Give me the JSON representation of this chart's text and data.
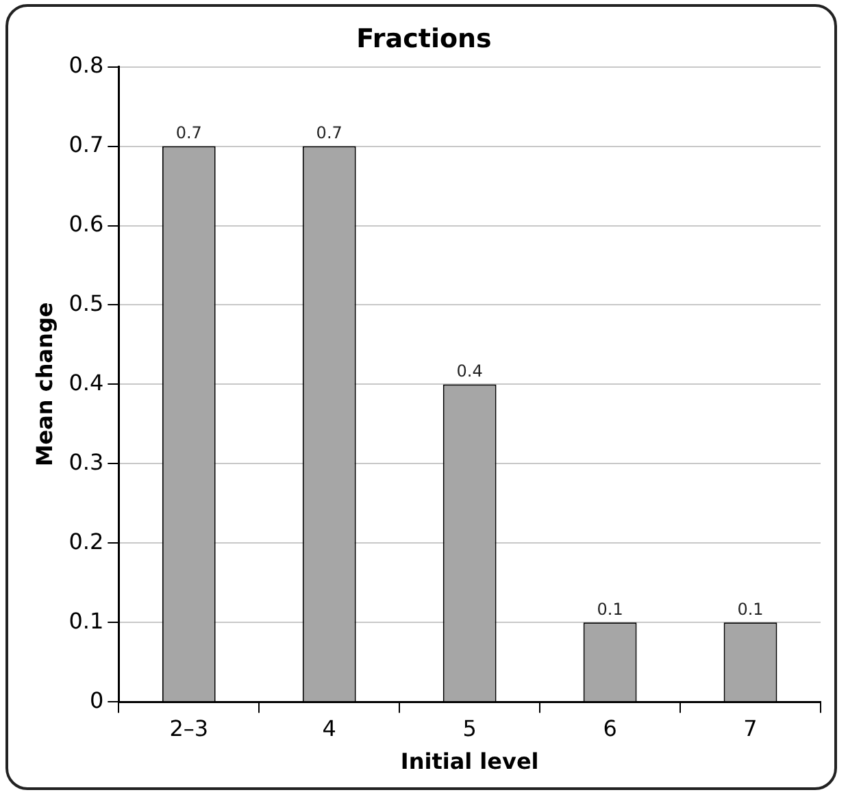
{
  "chart_data": {
    "type": "bar",
    "title": "Fractions",
    "xlabel": "Initial level",
    "ylabel": "Mean change",
    "categories": [
      "2–3",
      "4",
      "5",
      "6",
      "7"
    ],
    "values": [
      0.7,
      0.7,
      0.4,
      0.1,
      0.1
    ],
    "color": "#a6a6a6",
    "ylim": [
      0,
      0.8
    ],
    "yticks": [
      0,
      0.1,
      0.2,
      0.3,
      0.4,
      0.5,
      0.6,
      0.7,
      0.8
    ],
    "grid": "y",
    "legend": false,
    "data_labels": true
  }
}
